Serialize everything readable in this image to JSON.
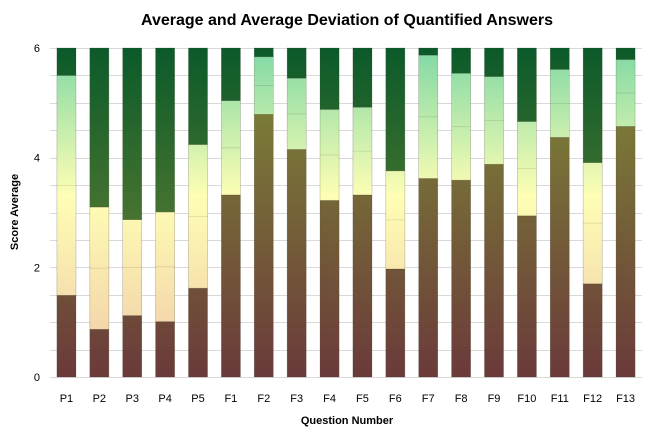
{
  "chart_data": {
    "type": "bar",
    "title": "Average and Average Deviation of Quantified Answers",
    "xlabel": "Question Number",
    "ylabel": "Score Average",
    "ylim": [
      0,
      6
    ],
    "yticks": [
      0,
      2,
      4,
      6
    ],
    "grid": true,
    "legend": "none",
    "categories": [
      "P1",
      "P2",
      "P3",
      "P4",
      "P5",
      "F1",
      "F2",
      "F3",
      "F4",
      "F5",
      "F6",
      "F7",
      "F8",
      "F9",
      "F10",
      "F11",
      "F12",
      "F13"
    ],
    "series": [
      {
        "values": [
          1.49,
          0.87,
          1.12,
          1.01,
          1.62,
          3.32,
          4.79,
          4.15,
          3.22,
          3.32,
          1.97,
          3.62,
          3.59,
          3.88,
          2.94,
          4.37,
          1.7,
          4.57
        ]
      },
      {
        "values": [
          4.01,
          2.23,
          1.75,
          2.0,
          2.62,
          1.72,
          1.05,
          1.3,
          1.66,
          1.6,
          1.79,
          2.25,
          1.95,
          1.6,
          1.72,
          1.24,
          2.21,
          1.22
        ]
      },
      {
        "values": [
          0.5,
          2.9,
          3.13,
          2.99,
          1.76,
          0.96,
          0.16,
          0.55,
          1.12,
          1.08,
          2.24,
          0.13,
          0.46,
          0.52,
          1.34,
          0.39,
          2.09,
          0.21
        ]
      }
    ],
    "colors": {
      "bottom_gradient_top": "#7e8b36",
      "bottom_gradient_bottom": "#6b3a3a",
      "middle_gradient_top": "#7ed8a4",
      "middle_gradient_mid": "#fefeb4",
      "middle_gradient_bottom": "#f0c8a8",
      "top_gradient_top": "#0b5a2a",
      "top_gradient_bottom": "#7e8b36"
    }
  }
}
